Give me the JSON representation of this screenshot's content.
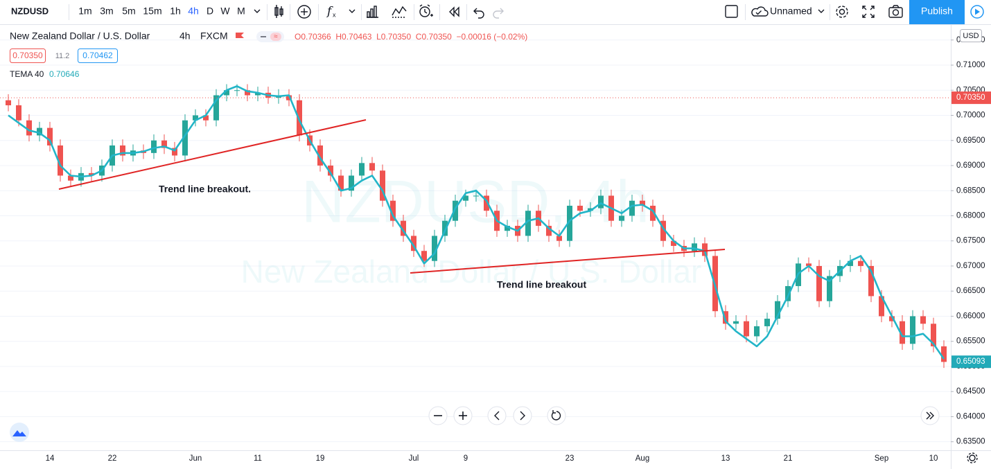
{
  "toolbar": {
    "symbol": "NZDUSD",
    "intervals": [
      "1m",
      "3m",
      "5m",
      "15m",
      "1h",
      "4h",
      "D",
      "W",
      "M"
    ],
    "layout_name": "Unnamed",
    "publish": "Publish"
  },
  "header": {
    "symbol_name": "New Zealand Dollar / U.S. Dollar",
    "interval": "4h",
    "exchange": "FXCM",
    "ohlc_text": "O0.70366  H0.70463  L0.70350  C0.70350  −0.00016 (−0.02%)",
    "bid": "0.70350",
    "spread": "11.2",
    "ask": "0.70462",
    "indicator_value": "0.70646"
  },
  "currency": "USD",
  "watermark": {
    "symbol": "NZDUSD, 4h",
    "description": "New Zealand Dollar / U.S. Dollar"
  },
  "annotations": [
    "Trend line breakout.",
    "Trend line breakout"
  ],
  "chart_data": {
    "type": "candlestick",
    "categories": [
      null,
      null,
      null,
      null,
      "14",
      null,
      null,
      null,
      null,
      null,
      "22",
      null,
      null,
      null,
      null,
      null,
      null,
      null,
      "Jun",
      null,
      null,
      null,
      null,
      null,
      "11",
      null,
      null,
      null,
      null,
      null,
      "19",
      null,
      null,
      null,
      null,
      null,
      null,
      null,
      null,
      "Jul",
      null,
      null,
      null,
      null,
      "9",
      null,
      null,
      null,
      null,
      null,
      null,
      null,
      null,
      null,
      "23",
      null,
      null,
      null,
      null,
      null,
      null,
      "Aug",
      null,
      null,
      null,
      null,
      null,
      null,
      null,
      "13",
      null,
      null,
      null,
      null,
      null,
      "21",
      null,
      null,
      null,
      null,
      null,
      null,
      null,
      null,
      "Sep",
      null,
      null,
      null,
      null,
      "10",
      null
    ],
    "ohlc": [
      [
        0.703,
        0.7042,
        0.7008,
        0.702
      ],
      [
        0.702,
        0.7032,
        0.6978,
        0.699
      ],
      [
        0.699,
        0.7002,
        0.6948,
        0.696
      ],
      [
        0.696,
        0.6987,
        0.6948,
        0.6975
      ],
      [
        0.6975,
        0.6987,
        0.6928,
        0.694
      ],
      [
        0.694,
        0.6952,
        0.6868,
        0.688
      ],
      [
        0.688,
        0.6892,
        0.6858,
        0.687
      ],
      [
        0.687,
        0.6897,
        0.6858,
        0.6885
      ],
      [
        0.6885,
        0.6897,
        0.6868,
        0.688
      ],
      [
        0.688,
        0.6912,
        0.6868,
        0.69
      ],
      [
        0.69,
        0.6952,
        0.6888,
        0.694
      ],
      [
        0.694,
        0.6952,
        0.6908,
        0.692
      ],
      [
        0.692,
        0.6942,
        0.6908,
        0.693
      ],
      [
        0.693,
        0.6942,
        0.6913,
        0.6925
      ],
      [
        0.6925,
        0.6962,
        0.6913,
        0.695
      ],
      [
        0.695,
        0.6962,
        0.6923,
        0.6935
      ],
      [
        0.6935,
        0.6947,
        0.6908,
        0.692
      ],
      [
        0.692,
        0.7002,
        0.6908,
        0.699
      ],
      [
        0.699,
        0.7012,
        0.6978,
        0.7
      ],
      [
        0.7,
        0.7012,
        0.6978,
        0.699
      ],
      [
        0.699,
        0.7052,
        0.6978,
        0.704
      ],
      [
        0.704,
        0.7062,
        0.7028,
        0.705
      ],
      [
        0.705,
        0.7062,
        0.7038,
        0.705
      ],
      [
        0.705,
        0.7062,
        0.7028,
        0.704
      ],
      [
        0.704,
        0.7057,
        0.7028,
        0.7045
      ],
      [
        0.7045,
        0.7057,
        0.7023,
        0.7035
      ],
      [
        0.7035,
        0.7052,
        0.7023,
        0.704
      ],
      [
        0.704,
        0.7052,
        0.7018,
        0.703
      ],
      [
        0.703,
        0.7042,
        0.6948,
        0.696
      ],
      [
        0.696,
        0.6972,
        0.6928,
        0.694
      ],
      [
        0.694,
        0.6952,
        0.6888,
        0.69
      ],
      [
        0.69,
        0.6912,
        0.6868,
        0.688
      ],
      [
        0.688,
        0.6892,
        0.6838,
        0.685
      ],
      [
        0.685,
        0.6892,
        0.6838,
        0.688
      ],
      [
        0.688,
        0.6917,
        0.6868,
        0.6905
      ],
      [
        0.6905,
        0.6917,
        0.6878,
        0.689
      ],
      [
        0.689,
        0.6902,
        0.6818,
        0.683
      ],
      [
        0.683,
        0.6842,
        0.6778,
        0.679
      ],
      [
        0.679,
        0.6802,
        0.6748,
        0.676
      ],
      [
        0.676,
        0.6772,
        0.6718,
        0.673
      ],
      [
        0.673,
        0.6742,
        0.6698,
        0.671
      ],
      [
        0.671,
        0.6772,
        0.6698,
        0.676
      ],
      [
        0.676,
        0.6802,
        0.6748,
        0.679
      ],
      [
        0.679,
        0.6842,
        0.6778,
        0.683
      ],
      [
        0.683,
        0.6852,
        0.6818,
        0.684
      ],
      [
        0.684,
        0.6852,
        0.6828,
        0.684
      ],
      [
        0.684,
        0.6852,
        0.6798,
        0.681
      ],
      [
        0.681,
        0.6822,
        0.6758,
        0.677
      ],
      [
        0.677,
        0.6792,
        0.6758,
        0.678
      ],
      [
        0.678,
        0.6792,
        0.6748,
        0.676
      ],
      [
        0.676,
        0.6822,
        0.6748,
        0.681
      ],
      [
        0.681,
        0.6822,
        0.6768,
        0.678
      ],
      [
        0.678,
        0.6792,
        0.6748,
        0.676
      ],
      [
        0.676,
        0.6772,
        0.6738,
        0.675
      ],
      [
        0.675,
        0.6832,
        0.6738,
        0.682
      ],
      [
        0.682,
        0.6832,
        0.6798,
        0.681
      ],
      [
        0.681,
        0.6827,
        0.6798,
        0.6815
      ],
      [
        0.6815,
        0.6852,
        0.6803,
        0.684
      ],
      [
        0.684,
        0.6852,
        0.6778,
        0.679
      ],
      [
        0.679,
        0.6812,
        0.6778,
        0.68
      ],
      [
        0.68,
        0.6842,
        0.6788,
        0.683
      ],
      [
        0.683,
        0.6842,
        0.6808,
        0.682
      ],
      [
        0.682,
        0.6832,
        0.6778,
        0.679
      ],
      [
        0.679,
        0.6802,
        0.6738,
        0.675
      ],
      [
        0.675,
        0.6762,
        0.6728,
        0.674
      ],
      [
        0.674,
        0.6752,
        0.6718,
        0.673
      ],
      [
        0.673,
        0.6757,
        0.6718,
        0.6745
      ],
      [
        0.6745,
        0.6757,
        0.6708,
        0.672
      ],
      [
        0.672,
        0.6732,
        0.6598,
        0.661
      ],
      [
        0.661,
        0.6622,
        0.6573,
        0.6585
      ],
      [
        0.6585,
        0.6602,
        0.6573,
        0.659
      ],
      [
        0.659,
        0.6602,
        0.6548,
        0.656
      ],
      [
        0.656,
        0.6592,
        0.6548,
        0.658
      ],
      [
        0.658,
        0.6607,
        0.6568,
        0.6595
      ],
      [
        0.6595,
        0.6642,
        0.6583,
        0.663
      ],
      [
        0.663,
        0.6672,
        0.6618,
        0.666
      ],
      [
        0.666,
        0.6717,
        0.6648,
        0.6705
      ],
      [
        0.6705,
        0.6717,
        0.6688,
        0.67
      ],
      [
        0.67,
        0.6712,
        0.6618,
        0.663
      ],
      [
        0.663,
        0.6692,
        0.6618,
        0.668
      ],
      [
        0.668,
        0.6712,
        0.6668,
        0.67
      ],
      [
        0.67,
        0.6722,
        0.6688,
        0.671
      ],
      [
        0.671,
        0.6722,
        0.6688,
        0.67
      ],
      [
        0.67,
        0.6712,
        0.6628,
        0.664
      ],
      [
        0.664,
        0.6652,
        0.6588,
        0.66
      ],
      [
        0.66,
        0.6612,
        0.6578,
        0.659
      ],
      [
        0.659,
        0.6602,
        0.6533,
        0.6545
      ],
      [
        0.6545,
        0.6612,
        0.6533,
        0.66
      ],
      [
        0.66,
        0.6612,
        0.6573,
        0.6585
      ],
      [
        0.6585,
        0.6597,
        0.6528,
        0.654
      ],
      [
        0.654,
        0.6552,
        0.6497,
        0.6509
      ]
    ],
    "up_color": "#26a69a",
    "down_color": "#ef5350",
    "overlays": [
      {
        "name": "TEMA 40",
        "color": "#22b5c8",
        "values": [
          0.7,
          0.6985,
          0.697,
          0.6965,
          0.695,
          0.69,
          0.688,
          0.6878,
          0.688,
          0.689,
          0.692,
          0.6925,
          0.6925,
          0.6928,
          0.6935,
          0.6938,
          0.693,
          0.696,
          0.699,
          0.7,
          0.703,
          0.705,
          0.7058,
          0.7048,
          0.7045,
          0.704,
          0.7038,
          0.704,
          0.699,
          0.695,
          0.6915,
          0.6885,
          0.685,
          0.6855,
          0.687,
          0.688,
          0.685,
          0.68,
          0.677,
          0.674,
          0.6705,
          0.6725,
          0.677,
          0.6815,
          0.6845,
          0.685,
          0.683,
          0.679,
          0.6778,
          0.677,
          0.679,
          0.6795,
          0.6775,
          0.676,
          0.679,
          0.6805,
          0.681,
          0.6825,
          0.6815,
          0.6805,
          0.682,
          0.6822,
          0.681,
          0.6775,
          0.675,
          0.6735,
          0.6735,
          0.673,
          0.666,
          0.659,
          0.657,
          0.6555,
          0.654,
          0.656,
          0.66,
          0.664,
          0.6685,
          0.67,
          0.668,
          0.667,
          0.669,
          0.671,
          0.672,
          0.669,
          0.664,
          0.66,
          0.656,
          0.656,
          0.6565,
          0.6545,
          0.6515
        ]
      }
    ],
    "ylim": [
      0.6333,
      0.718
    ],
    "yticks": [
      {
        "value": 0.635,
        "label": "0.63500"
      },
      {
        "value": 0.64,
        "label": "0.64000"
      },
      {
        "value": 0.645,
        "label": "0.64500"
      },
      {
        "value": 0.65,
        "label": "0.65000"
      },
      {
        "value": 0.655,
        "label": "0.65500"
      },
      {
        "value": 0.66,
        "label": "0.66000"
      },
      {
        "value": 0.665,
        "label": "0.66500"
      },
      {
        "value": 0.67,
        "label": "0.67000"
      },
      {
        "value": 0.675,
        "label": "0.67500"
      },
      {
        "value": 0.68,
        "label": "0.68000"
      },
      {
        "value": 0.685,
        "label": "0.68500"
      },
      {
        "value": 0.69,
        "label": "0.69000"
      },
      {
        "value": 0.695,
        "label": "0.69500"
      },
      {
        "value": 0.7,
        "label": "0.70000"
      },
      {
        "value": 0.705,
        "label": "0.70500"
      },
      {
        "value": 0.71,
        "label": "0.71000"
      },
      {
        "value": 0.715,
        "label": "0.71500"
      }
    ],
    "grid": true,
    "price_labels": [
      {
        "value": 0.7035,
        "label": "0.70350",
        "color": "#ef5350"
      },
      {
        "value": 0.65093,
        "label": "0.65093",
        "color": "#22aab8"
      }
    ]
  }
}
